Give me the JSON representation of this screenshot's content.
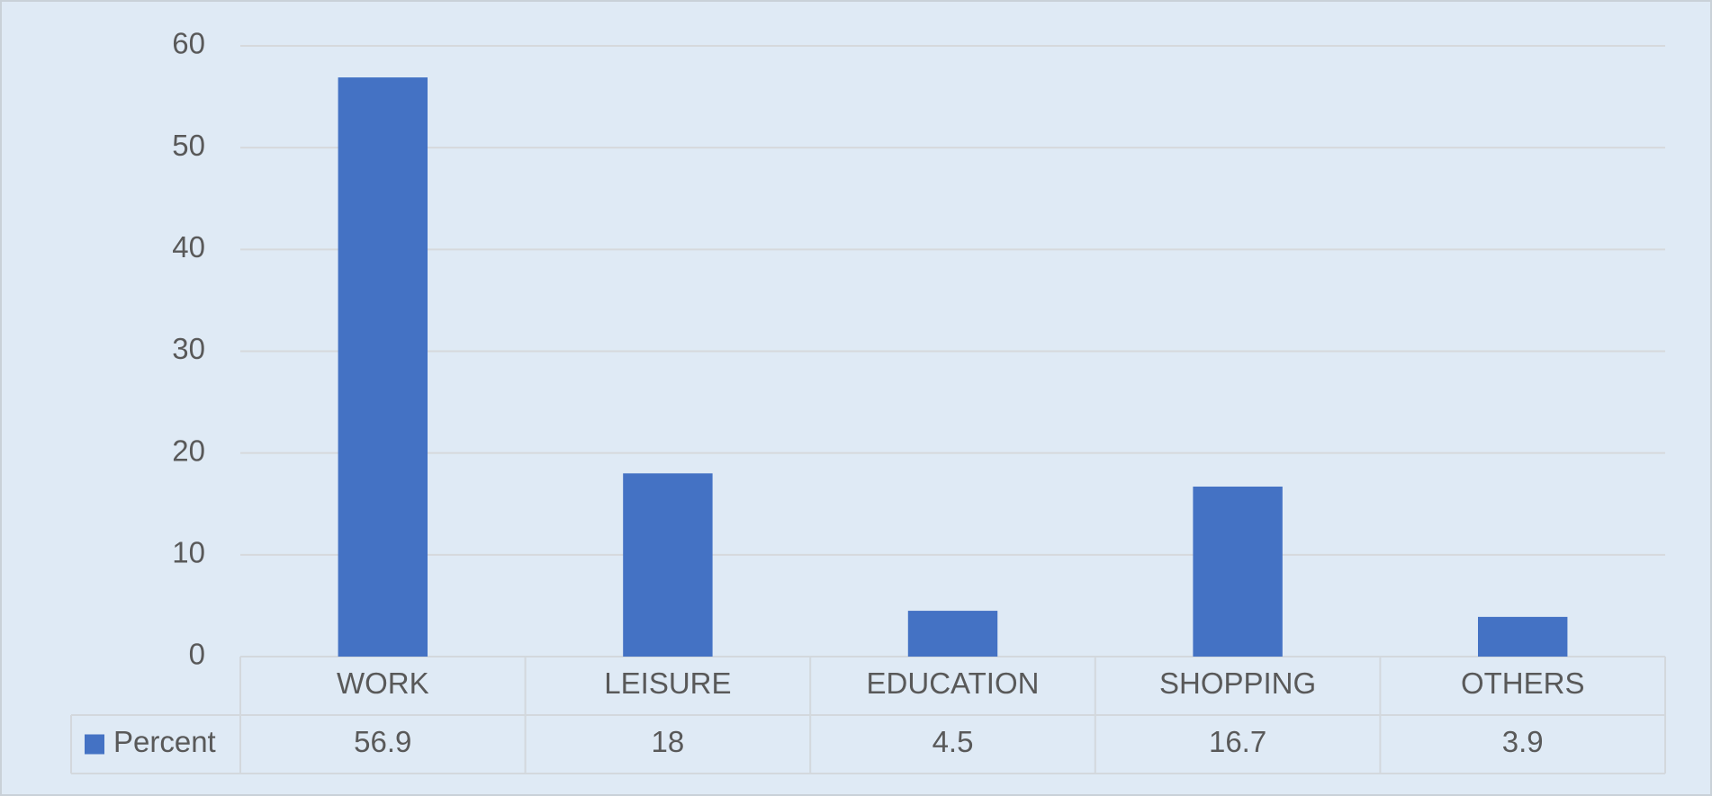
{
  "chart_data": {
    "type": "bar",
    "categories": [
      "WORK",
      "LEISURE",
      "EDUCATION",
      "SHOPPING",
      "OTHERS"
    ],
    "series": [
      {
        "name": "Percent",
        "color": "#4472c4",
        "values": [
          56.9,
          18,
          4.5,
          16.7,
          3.9
        ]
      }
    ],
    "ylim": [
      0,
      60
    ],
    "yticks": [
      0,
      10,
      20,
      30,
      40,
      50,
      60
    ],
    "grid": true,
    "data_table": true
  }
}
